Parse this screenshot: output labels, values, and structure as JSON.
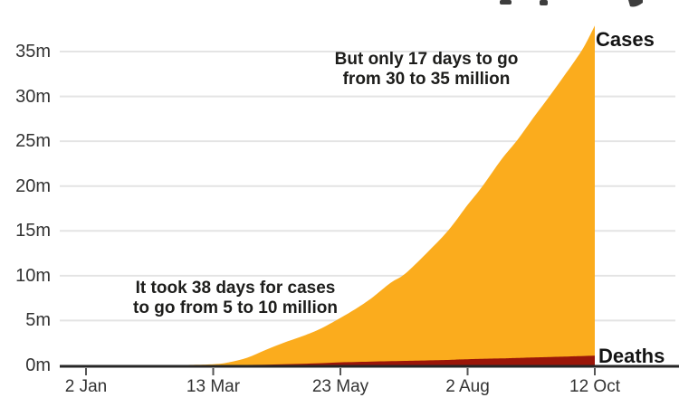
{
  "chart_data": {
    "type": "area",
    "title": "",
    "note": "title cropped off at top of screenshot; only letter descenders visible",
    "x_axis": {
      "ticks": [
        {
          "label": "2 Jan",
          "day": 0
        },
        {
          "label": "13 Mar",
          "day": 71
        },
        {
          "label": "23 May",
          "day": 142
        },
        {
          "label": "2 Aug",
          "day": 213
        },
        {
          "label": "12 Oct",
          "day": 284
        }
      ]
    },
    "y_axis": {
      "unit": "millions",
      "ticks": [
        {
          "label": "0m",
          "value": 0
        },
        {
          "label": "5m",
          "value": 5
        },
        {
          "label": "10m",
          "value": 10
        },
        {
          "label": "15m",
          "value": 15
        },
        {
          "label": "20m",
          "value": 20
        },
        {
          "label": "25m",
          "value": 25
        },
        {
          "label": "30m",
          "value": 30
        },
        {
          "label": "35m",
          "value": 35
        }
      ],
      "range": [
        0,
        38
      ]
    },
    "series": [
      {
        "name": "Cases",
        "color": "#fbac1d",
        "points": [
          [
            0,
            0
          ],
          [
            30,
            0.01
          ],
          [
            50,
            0.04
          ],
          [
            71,
            0.13
          ],
          [
            80,
            0.35
          ],
          [
            90,
            0.86
          ],
          [
            100,
            1.7
          ],
          [
            110,
            2.5
          ],
          [
            120,
            3.2
          ],
          [
            130,
            4.0
          ],
          [
            142,
            5.3
          ],
          [
            152,
            6.5
          ],
          [
            160,
            7.6
          ],
          [
            170,
            9.2
          ],
          [
            178,
            10.2
          ],
          [
            190,
            12.5
          ],
          [
            202,
            15.0
          ],
          [
            213,
            17.9
          ],
          [
            221,
            19.9
          ],
          [
            232,
            23.0
          ],
          [
            241,
            25.2
          ],
          [
            250,
            27.7
          ],
          [
            259,
            30.1
          ],
          [
            268,
            32.6
          ],
          [
            276,
            34.9
          ],
          [
            280,
            36.3
          ],
          [
            284,
            37.9
          ]
        ]
      },
      {
        "name": "Deaths",
        "color": "#9a1609",
        "points": [
          [
            0,
            0
          ],
          [
            71,
            0.01
          ],
          [
            90,
            0.05
          ],
          [
            110,
            0.13
          ],
          [
            130,
            0.24
          ],
          [
            142,
            0.34
          ],
          [
            160,
            0.43
          ],
          [
            178,
            0.5
          ],
          [
            202,
            0.61
          ],
          [
            213,
            0.69
          ],
          [
            232,
            0.78
          ],
          [
            241,
            0.84
          ],
          [
            259,
            0.94
          ],
          [
            270,
            1.0
          ],
          [
            284,
            1.08
          ]
        ]
      }
    ],
    "annotations": [
      {
        "line1": "But only 17 days to go",
        "line2": "from 30 to 35 million"
      },
      {
        "line1": "It took 38 days for cases",
        "line2": "to go from 5 to 10 million"
      }
    ],
    "legend_position": "right-of-area-ends",
    "grid": "horizontal",
    "colors": {
      "grid": "#e4e4e4",
      "axis": "#262626",
      "tick": "#555555",
      "annotation_text": "#1d1d1b",
      "axis_label_text": "#333333",
      "legend_text": "#141414"
    }
  }
}
